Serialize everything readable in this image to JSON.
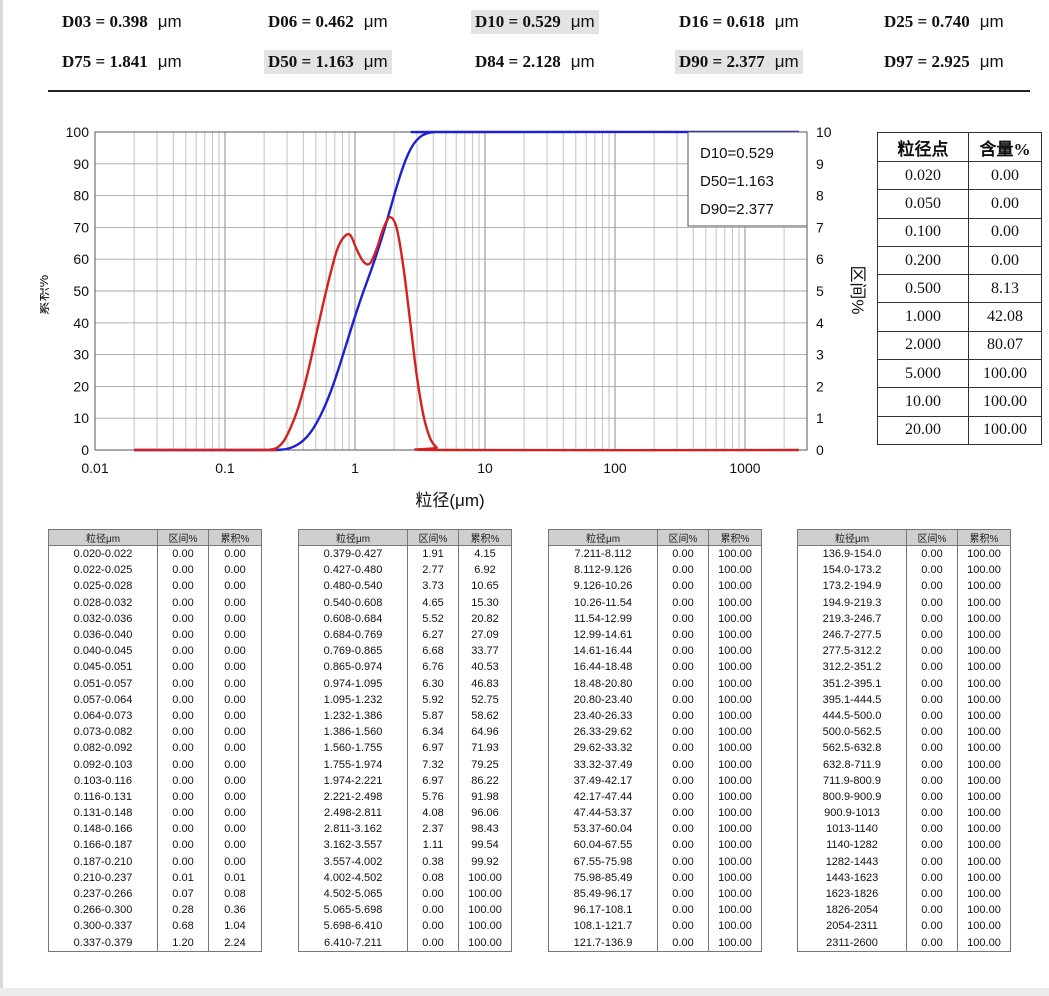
{
  "summary": {
    "unit": "μm",
    "row1": [
      {
        "key": "D03 = 0.398",
        "highlight": false
      },
      {
        "key": "D06 = 0.462",
        "highlight": false
      },
      {
        "key": "D10 = 0.529",
        "highlight": true
      },
      {
        "key": "D16 = 0.618",
        "highlight": false
      },
      {
        "key": "D25 = 0.740",
        "highlight": false
      }
    ],
    "row2": [
      {
        "key": "D75 = 1.841",
        "highlight": false
      },
      {
        "key": "D50 = 1.163",
        "highlight": true
      },
      {
        "key": "D84 = 2.128",
        "highlight": false
      },
      {
        "key": "D90 = 2.377",
        "highlight": true
      },
      {
        "key": "D97 = 2.925",
        "highlight": false
      }
    ]
  },
  "chart_data": {
    "type": "line",
    "title": "",
    "xlabel": "粒径(μm)",
    "ylabel_left": "累积%",
    "ylabel_right": "区间%",
    "x_scale": "log",
    "xlim": [
      0.01,
      3000
    ],
    "ylim_left": [
      0,
      100
    ],
    "ylim_right": [
      0,
      10
    ],
    "x_ticks": [
      "0.01",
      "0.1",
      "1",
      "10",
      "100",
      "1000"
    ],
    "y_ticks_left": [
      "0",
      "10",
      "20",
      "30",
      "40",
      "50",
      "60",
      "70",
      "80",
      "90",
      "100"
    ],
    "y_ticks_right": [
      "0",
      "1",
      "2",
      "3",
      "4",
      "5",
      "6",
      "7",
      "8",
      "9",
      "10"
    ],
    "grid": true,
    "legend_box": {
      "position": "top-right",
      "lines": [
        "D10=0.529",
        "D50=1.163",
        "D90=2.377"
      ]
    },
    "series": [
      {
        "axis": "left",
        "color": "#1f1fd6",
        "x": [
          0.02,
          0.2,
          0.237,
          0.266,
          0.3,
          0.337,
          0.379,
          0.427,
          0.48,
          0.54,
          0.608,
          0.684,
          0.769,
          0.865,
          0.974,
          1.095,
          1.232,
          1.386,
          1.56,
          1.755,
          1.974,
          2.221,
          2.498,
          2.811,
          3.162,
          3.557,
          4.002,
          4.502,
          2600
        ],
        "y": [
          0,
          0,
          0.01,
          0.08,
          0.36,
          1.04,
          2.24,
          4.15,
          6.92,
          10.65,
          15.3,
          20.82,
          27.09,
          33.77,
          40.53,
          46.83,
          52.75,
          58.62,
          64.96,
          71.93,
          79.25,
          86.22,
          91.98,
          96.06,
          98.43,
          99.54,
          99.92,
          100.0,
          100.0
        ]
      },
      {
        "axis": "right",
        "color": "#d62020",
        "x": [
          0.02,
          0.2,
          0.222,
          0.251,
          0.283,
          0.318,
          0.357,
          0.402,
          0.453,
          0.509,
          0.573,
          0.645,
          0.725,
          0.816,
          0.918,
          1.033,
          1.162,
          1.307,
          1.471,
          1.655,
          1.862,
          2.094,
          2.356,
          2.65,
          2.98,
          3.354,
          3.773,
          4.245,
          4.775,
          2600
        ],
        "y": [
          0,
          0,
          0.01,
          0.07,
          0.28,
          0.68,
          1.2,
          1.91,
          2.77,
          3.73,
          4.65,
          5.52,
          6.27,
          6.68,
          6.76,
          6.3,
          5.92,
          5.87,
          6.34,
          6.97,
          7.32,
          6.97,
          5.76,
          4.08,
          2.37,
          1.11,
          0.38,
          0.08,
          0.0,
          0.0
        ]
      }
    ]
  },
  "content_table": {
    "headers": [
      "粒径点",
      "含量%"
    ],
    "rows": [
      [
        "0.020",
        "0.00"
      ],
      [
        "0.050",
        "0.00"
      ],
      [
        "0.100",
        "0.00"
      ],
      [
        "0.200",
        "0.00"
      ],
      [
        "0.500",
        "8.13"
      ],
      [
        "1.000",
        "42.08"
      ],
      [
        "2.000",
        "80.07"
      ],
      [
        "5.000",
        "100.00"
      ],
      [
        "10.00",
        "100.00"
      ],
      [
        "20.00",
        "100.00"
      ]
    ]
  },
  "dist_headers": [
    "粒径μm",
    "区间%",
    "累积%"
  ],
  "dist_tables": [
    [
      [
        "0.020-0.022",
        "0.00",
        "0.00"
      ],
      [
        "0.022-0.025",
        "0.00",
        "0.00"
      ],
      [
        "0.025-0.028",
        "0.00",
        "0.00"
      ],
      [
        "0.028-0.032",
        "0.00",
        "0.00"
      ],
      [
        "0.032-0.036",
        "0.00",
        "0.00"
      ],
      [
        "0.036-0.040",
        "0.00",
        "0.00"
      ],
      [
        "0.040-0.045",
        "0.00",
        "0.00"
      ],
      [
        "0.045-0.051",
        "0.00",
        "0.00"
      ],
      [
        "0.051-0.057",
        "0.00",
        "0.00"
      ],
      [
        "0.057-0.064",
        "0.00",
        "0.00"
      ],
      [
        "0.064-0.073",
        "0.00",
        "0.00"
      ],
      [
        "0.073-0.082",
        "0.00",
        "0.00"
      ],
      [
        "0.082-0.092",
        "0.00",
        "0.00"
      ],
      [
        "0.092-0.103",
        "0.00",
        "0.00"
      ],
      [
        "0.103-0.116",
        "0.00",
        "0.00"
      ],
      [
        "0.116-0.131",
        "0.00",
        "0.00"
      ],
      [
        "0.131-0.148",
        "0.00",
        "0.00"
      ],
      [
        "0.148-0.166",
        "0.00",
        "0.00"
      ],
      [
        "0.166-0.187",
        "0.00",
        "0.00"
      ],
      [
        "0.187-0.210",
        "0.00",
        "0.00"
      ],
      [
        "0.210-0.237",
        "0.01",
        "0.01"
      ],
      [
        "0.237-0.266",
        "0.07",
        "0.08"
      ],
      [
        "0.266-0.300",
        "0.28",
        "0.36"
      ],
      [
        "0.300-0.337",
        "0.68",
        "1.04"
      ],
      [
        "0.337-0.379",
        "1.20",
        "2.24"
      ]
    ],
    [
      [
        "0.379-0.427",
        "1.91",
        "4.15"
      ],
      [
        "0.427-0.480",
        "2.77",
        "6.92"
      ],
      [
        "0.480-0.540",
        "3.73",
        "10.65"
      ],
      [
        "0.540-0.608",
        "4.65",
        "15.30"
      ],
      [
        "0.608-0.684",
        "5.52",
        "20.82"
      ],
      [
        "0.684-0.769",
        "6.27",
        "27.09"
      ],
      [
        "0.769-0.865",
        "6.68",
        "33.77"
      ],
      [
        "0.865-0.974",
        "6.76",
        "40.53"
      ],
      [
        "0.974-1.095",
        "6.30",
        "46.83"
      ],
      [
        "1.095-1.232",
        "5.92",
        "52.75"
      ],
      [
        "1.232-1.386",
        "5.87",
        "58.62"
      ],
      [
        "1.386-1.560",
        "6.34",
        "64.96"
      ],
      [
        "1.560-1.755",
        "6.97",
        "71.93"
      ],
      [
        "1.755-1.974",
        "7.32",
        "79.25"
      ],
      [
        "1.974-2.221",
        "6.97",
        "86.22"
      ],
      [
        "2.221-2.498",
        "5.76",
        "91.98"
      ],
      [
        "2.498-2.811",
        "4.08",
        "96.06"
      ],
      [
        "2.811-3.162",
        "2.37",
        "98.43"
      ],
      [
        "3.162-3.557",
        "1.11",
        "99.54"
      ],
      [
        "3.557-4.002",
        "0.38",
        "99.92"
      ],
      [
        "4.002-4.502",
        "0.08",
        "100.00"
      ],
      [
        "4.502-5.065",
        "0.00",
        "100.00"
      ],
      [
        "5.065-5.698",
        "0.00",
        "100.00"
      ],
      [
        "5.698-6.410",
        "0.00",
        "100.00"
      ],
      [
        "6.410-7.211",
        "0.00",
        "100.00"
      ]
    ],
    [
      [
        "7.211-8.112",
        "0.00",
        "100.00"
      ],
      [
        "8.112-9.126",
        "0.00",
        "100.00"
      ],
      [
        "9.126-10.26",
        "0.00",
        "100.00"
      ],
      [
        "10.26-11.54",
        "0.00",
        "100.00"
      ],
      [
        "11.54-12.99",
        "0.00",
        "100.00"
      ],
      [
        "12.99-14.61",
        "0.00",
        "100.00"
      ],
      [
        "14.61-16.44",
        "0.00",
        "100.00"
      ],
      [
        "16.44-18.48",
        "0.00",
        "100.00"
      ],
      [
        "18.48-20.80",
        "0.00",
        "100.00"
      ],
      [
        "20.80-23.40",
        "0.00",
        "100.00"
      ],
      [
        "23.40-26.33",
        "0.00",
        "100.00"
      ],
      [
        "26.33-29.62",
        "0.00",
        "100.00"
      ],
      [
        "29.62-33.32",
        "0.00",
        "100.00"
      ],
      [
        "33.32-37.49",
        "0.00",
        "100.00"
      ],
      [
        "37.49-42.17",
        "0.00",
        "100.00"
      ],
      [
        "42.17-47.44",
        "0.00",
        "100.00"
      ],
      [
        "47.44-53.37",
        "0.00",
        "100.00"
      ],
      [
        "53.37-60.04",
        "0.00",
        "100.00"
      ],
      [
        "60.04-67.55",
        "0.00",
        "100.00"
      ],
      [
        "67.55-75.98",
        "0.00",
        "100.00"
      ],
      [
        "75.98-85.49",
        "0.00",
        "100.00"
      ],
      [
        "85.49-96.17",
        "0.00",
        "100.00"
      ],
      [
        "96.17-108.1",
        "0.00",
        "100.00"
      ],
      [
        "108.1-121.7",
        "0.00",
        "100.00"
      ],
      [
        "121.7-136.9",
        "0.00",
        "100.00"
      ]
    ],
    [
      [
        "136.9-154.0",
        "0.00",
        "100.00"
      ],
      [
        "154.0-173.2",
        "0.00",
        "100.00"
      ],
      [
        "173.2-194.9",
        "0.00",
        "100.00"
      ],
      [
        "194.9-219.3",
        "0.00",
        "100.00"
      ],
      [
        "219.3-246.7",
        "0.00",
        "100.00"
      ],
      [
        "246.7-277.5",
        "0.00",
        "100.00"
      ],
      [
        "277.5-312.2",
        "0.00",
        "100.00"
      ],
      [
        "312.2-351.2",
        "0.00",
        "100.00"
      ],
      [
        "351.2-395.1",
        "0.00",
        "100.00"
      ],
      [
        "395.1-444.5",
        "0.00",
        "100.00"
      ],
      [
        "444.5-500.0",
        "0.00",
        "100.00"
      ],
      [
        "500.0-562.5",
        "0.00",
        "100.00"
      ],
      [
        "562.5-632.8",
        "0.00",
        "100.00"
      ],
      [
        "632.8-711.9",
        "0.00",
        "100.00"
      ],
      [
        "711.9-800.9",
        "0.00",
        "100.00"
      ],
      [
        "800.9-900.9",
        "0.00",
        "100.00"
      ],
      [
        "900.9-1013",
        "0.00",
        "100.00"
      ],
      [
        "1013-1140",
        "0.00",
        "100.00"
      ],
      [
        "1140-1282",
        "0.00",
        "100.00"
      ],
      [
        "1282-1443",
        "0.00",
        "100.00"
      ],
      [
        "1443-1623",
        "0.00",
        "100.00"
      ],
      [
        "1623-1826",
        "0.00",
        "100.00"
      ],
      [
        "1826-2054",
        "0.00",
        "100.00"
      ],
      [
        "2054-2311",
        "0.00",
        "100.00"
      ],
      [
        "2311-2600",
        "0.00",
        "100.00"
      ]
    ]
  ]
}
